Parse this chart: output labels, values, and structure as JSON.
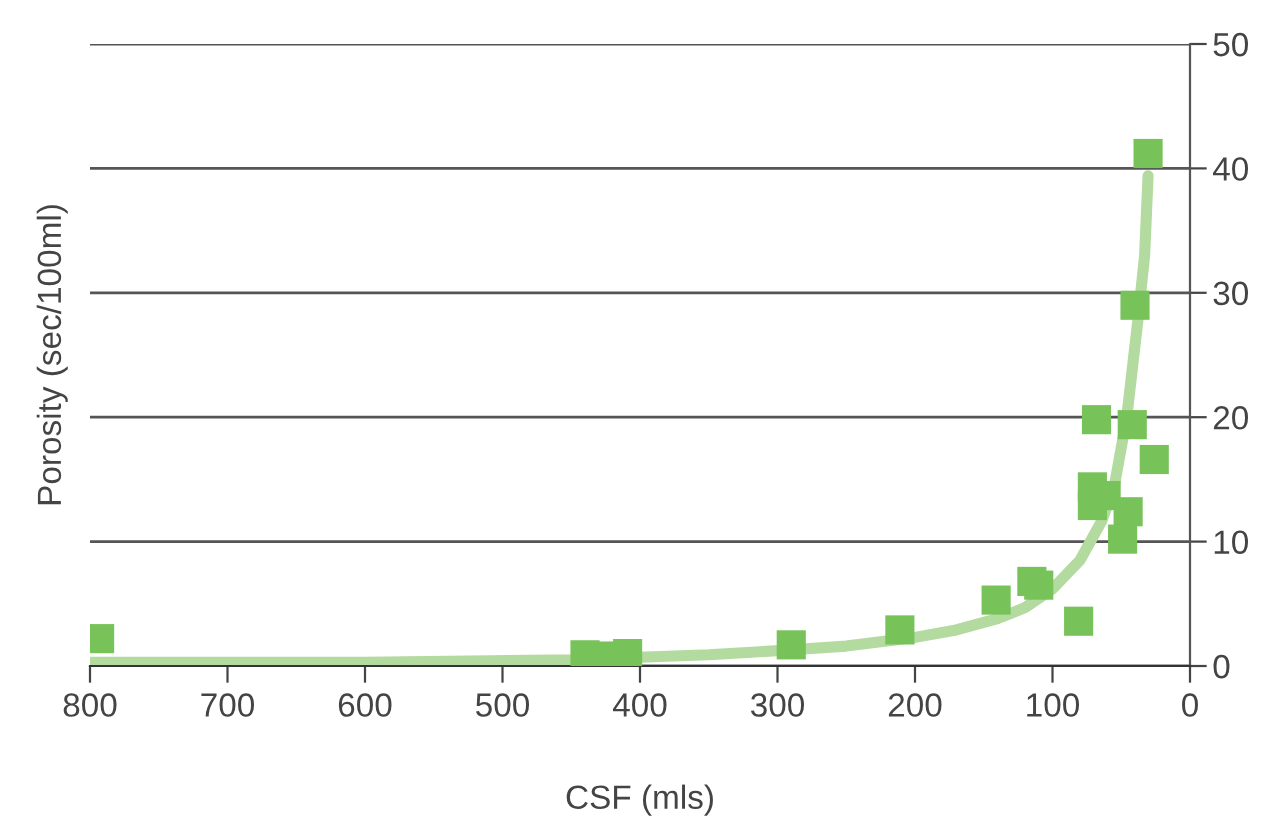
{
  "chart_data": {
    "type": "scatter",
    "xlabel": "CSF (mls)",
    "ylabel": "Porosity (sec/100ml)",
    "xlim": [
      800,
      0
    ],
    "ylim": [
      0,
      50
    ],
    "xticks": [
      800,
      700,
      600,
      500,
      400,
      300,
      200,
      100,
      0
    ],
    "yticks": [
      0,
      10,
      20,
      30,
      40,
      50
    ],
    "grid": "y",
    "series": [
      {
        "marker": "square",
        "color": "#78c25a",
        "x": [
          30.5,
          40,
          68,
          42,
          26,
          71,
          61,
          71,
          45,
          49,
          115,
          110,
          141,
          81,
          211,
          793,
          440,
          420,
          409,
          290
        ],
        "values": [
          41.2,
          29.0,
          19.8,
          19.4,
          16.6,
          14.4,
          13.7,
          12.9,
          12.4,
          10.2,
          6.8,
          6.5,
          5.3,
          3.6,
          2.9,
          2.2,
          0.9,
          0.8,
          1.0,
          1.7
        ]
      },
      {
        "type": "line",
        "color": "#b3da9f",
        "x": [
          800,
          600,
          450,
          350,
          290,
          250,
          200,
          170,
          140,
          120,
          100,
          80,
          64,
          55,
          46,
          38,
          33,
          30.5
        ],
        "values": [
          0.3,
          0.3,
          0.5,
          0.9,
          1.3,
          1.6,
          2.3,
          2.9,
          3.8,
          4.7,
          6.2,
          8.5,
          11.7,
          14.5,
          20,
          27.7,
          33,
          39.4
        ]
      }
    ]
  }
}
